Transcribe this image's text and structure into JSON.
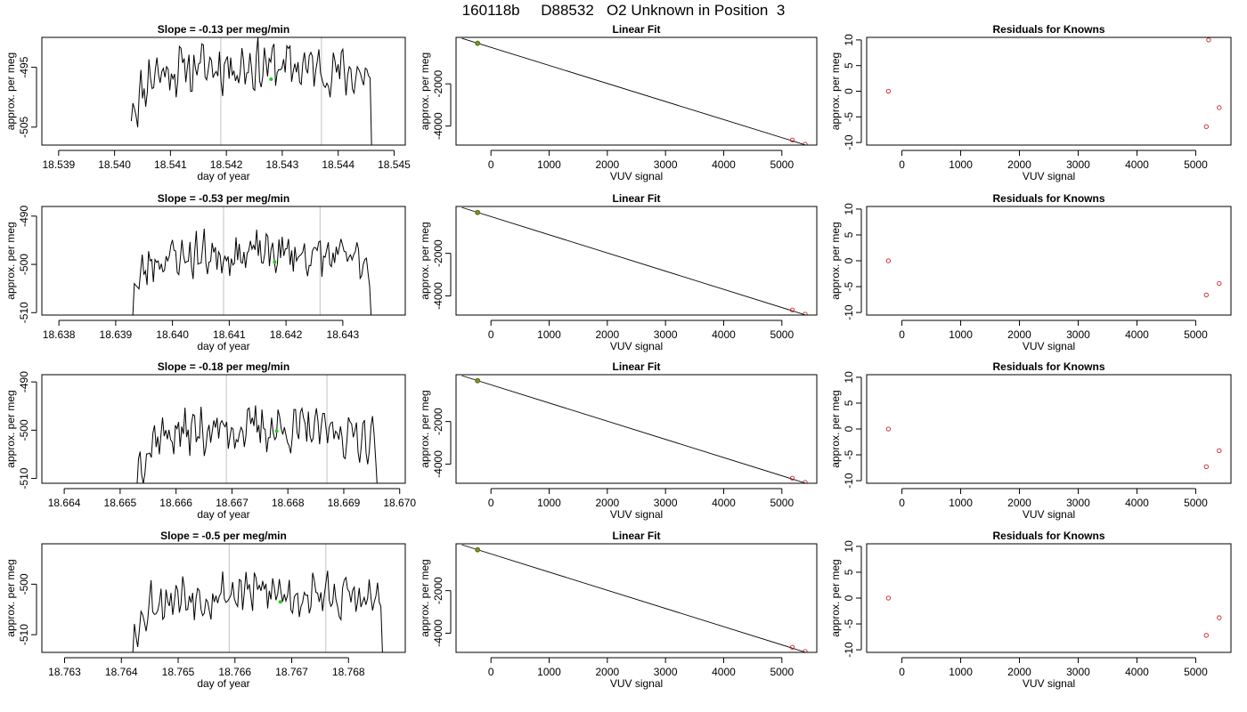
{
  "page": {
    "title": "160118b     D88532   O2 Unknown in Position  3"
  },
  "colors": {
    "trace": "#000000",
    "band": "#cccccc",
    "mean_point": "#22cc22",
    "known_point": "#cc2222"
  },
  "chart_data": [
    {
      "type": "line",
      "row": 0,
      "title": "Slope =  -0.13  per meg/min",
      "xlabel": "day of year",
      "ylabel": "approx. per meg",
      "xlim": [
        18.5387,
        18.5452
      ],
      "ylim": [
        -508,
        -490
      ],
      "xticks": [
        "18.539",
        "18.540",
        "18.541",
        "18.542",
        "18.543",
        "18.544",
        "18.545"
      ],
      "yticks": [
        "-505",
        "-495"
      ],
      "bands": [
        18.5419,
        18.5437
      ],
      "mean_point": {
        "x": 18.5428,
        "y": -497
      },
      "segment": {
        "x_start": 18.5403,
        "x_end": 18.5446,
        "seed": 11,
        "base": -496.5,
        "amp": 4,
        "start_y": -504,
        "end_y": -509
      }
    },
    {
      "type": "scatter",
      "row": 0,
      "title": "Linear Fit",
      "xlabel": "VUV signal",
      "ylabel": "approx. per meg",
      "xlim": [
        -600,
        5600
      ],
      "ylim": [
        -4900,
        200
      ],
      "xticks": [
        "0",
        "1000",
        "2000",
        "3000",
        "4000",
        "5000"
      ],
      "yticks": [
        "-2000",
        "-4000"
      ],
      "fit": {
        "x": [
          -500,
          5400
        ],
        "y": [
          153,
          -4890
        ]
      },
      "points": [
        {
          "x": -230,
          "y": -80,
          "color": "mean"
        },
        {
          "x": -230,
          "y": -80,
          "color": "known"
        },
        {
          "x": 5180,
          "y": -4660,
          "color": "known"
        },
        {
          "x": 5400,
          "y": -4860,
          "color": "known"
        }
      ]
    },
    {
      "type": "scatter",
      "row": 0,
      "title": "Residuals for Knowns",
      "xlabel": "VUV signal",
      "ylabel": "approx. per meg",
      "xlim": [
        -600,
        5600
      ],
      "ylim": [
        -10.5,
        10.5
      ],
      "xticks": [
        "0",
        "1000",
        "2000",
        "3000",
        "4000",
        "5000"
      ],
      "yticks": [
        "-10",
        "-5",
        "0",
        "5",
        "10"
      ],
      "points": [
        {
          "x": -230,
          "y": 0
        },
        {
          "x": 5220,
          "y": 10
        },
        {
          "x": 5180,
          "y": -6.9
        },
        {
          "x": 5400,
          "y": -3.2
        }
      ]
    },
    {
      "type": "line",
      "row": 1,
      "title": "Slope =  -0.53  per meg/min",
      "xlabel": "day of year",
      "ylabel": "approx. per meg",
      "xlim": [
        18.6377,
        18.6441
      ],
      "ylim": [
        -510.5,
        -488
      ],
      "xticks": [
        "18.638",
        "18.639",
        "18.640",
        "18.641",
        "18.642",
        "18.643"
      ],
      "yticks": [
        "-510",
        "-500",
        "-490"
      ],
      "bands": [
        18.6409,
        18.6426
      ],
      "mean_point": {
        "x": 18.6418,
        "y": -499.5
      },
      "segment": {
        "x_start": 18.6393,
        "x_end": 18.6435,
        "seed": 23,
        "base": -499.5,
        "amp": 4.5,
        "start_y": -511,
        "end_y": -511
      }
    },
    {
      "type": "scatter",
      "row": 1,
      "title": "Linear Fit",
      "xlabel": "VUV signal",
      "ylabel": "approx. per meg",
      "xlim": [
        -600,
        5600
      ],
      "ylim": [
        -4900,
        200
      ],
      "xticks": [
        "0",
        "1000",
        "2000",
        "3000",
        "4000",
        "5000"
      ],
      "yticks": [
        "-2000",
        "-4000"
      ],
      "fit": {
        "x": [
          -500,
          5400
        ],
        "y": [
          153,
          -4890
        ]
      },
      "points": [
        {
          "x": -230,
          "y": -80,
          "color": "mean"
        },
        {
          "x": -230,
          "y": -80,
          "color": "known"
        },
        {
          "x": 5180,
          "y": -4660,
          "color": "known"
        },
        {
          "x": 5400,
          "y": -4860,
          "color": "known"
        }
      ]
    },
    {
      "type": "scatter",
      "row": 1,
      "title": "Residuals for Knowns",
      "xlabel": "VUV signal",
      "ylabel": "approx. per meg",
      "xlim": [
        -600,
        5600
      ],
      "ylim": [
        -10.5,
        10.5
      ],
      "xticks": [
        "0",
        "1000",
        "2000",
        "3000",
        "4000",
        "5000"
      ],
      "yticks": [
        "-10",
        "-5",
        "0",
        "5",
        "10"
      ],
      "points": [
        {
          "x": -230,
          "y": 0
        },
        {
          "x": 5180,
          "y": -6.6
        },
        {
          "x": 5400,
          "y": -4.4
        }
      ]
    },
    {
      "type": "line",
      "row": 2,
      "title": "Slope =  -0.18  per meg/min",
      "xlabel": "day of year",
      "ylabel": "approx. per meg",
      "xlim": [
        18.6636,
        18.6701
      ],
      "ylim": [
        -511,
        -488.5
      ],
      "xticks": [
        "18.664",
        "18.665",
        "18.666",
        "18.667",
        "18.668",
        "18.669",
        "18.670"
      ],
      "yticks": [
        "-510",
        "-500",
        "-490"
      ],
      "bands": [
        18.6669,
        18.6687
      ],
      "mean_point": {
        "x": 18.6678,
        "y": -500.2
      },
      "segment": {
        "x_start": 18.6653,
        "x_end": 18.6696,
        "seed": 37,
        "base": -501.5,
        "amp": 4.5,
        "start_y": -512,
        "end_y": -512
      }
    },
    {
      "type": "scatter",
      "row": 2,
      "title": "Linear Fit",
      "xlabel": "VUV signal",
      "ylabel": "approx. per meg",
      "xlim": [
        -600,
        5600
      ],
      "ylim": [
        -4900,
        200
      ],
      "xticks": [
        "0",
        "1000",
        "2000",
        "3000",
        "4000",
        "5000"
      ],
      "yticks": [
        "-2000",
        "-4000"
      ],
      "fit": {
        "x": [
          -500,
          5400
        ],
        "y": [
          153,
          -4890
        ]
      },
      "points": [
        {
          "x": -230,
          "y": -80,
          "color": "mean"
        },
        {
          "x": -230,
          "y": -80,
          "color": "known"
        },
        {
          "x": 5180,
          "y": -4660,
          "color": "known"
        },
        {
          "x": 5400,
          "y": -4860,
          "color": "known"
        }
      ]
    },
    {
      "type": "scatter",
      "row": 2,
      "title": "Residuals for Knowns",
      "xlabel": "VUV signal",
      "ylabel": "approx. per meg",
      "xlim": [
        -600,
        5600
      ],
      "ylim": [
        -10.5,
        10.5
      ],
      "xticks": [
        "0",
        "1000",
        "2000",
        "3000",
        "4000",
        "5000"
      ],
      "yticks": [
        "-10",
        "-5",
        "0",
        "5",
        "10"
      ],
      "points": [
        {
          "x": -230,
          "y": 0
        },
        {
          "x": 5180,
          "y": -7.3
        },
        {
          "x": 5400,
          "y": -4.2
        }
      ]
    },
    {
      "type": "line",
      "row": 3,
      "title": "Slope =  -0.5  per meg/min",
      "xlabel": "day of year",
      "ylabel": "approx. per meg",
      "xlim": [
        18.7626,
        18.769
      ],
      "ylim": [
        -513.5,
        -492
      ],
      "xticks": [
        "18.763",
        "18.764",
        "18.765",
        "18.766",
        "18.767",
        "18.768"
      ],
      "yticks": [
        "-510",
        "-500"
      ],
      "bands": [
        18.7659,
        18.7676
      ],
      "mean_point": {
        "x": 18.7668,
        "y": -503.5
      },
      "segment": {
        "x_start": 18.7642,
        "x_end": 18.7686,
        "seed": 53,
        "base": -503.5,
        "amp": 4.5,
        "start_y": -514,
        "end_y": -514
      }
    },
    {
      "type": "scatter",
      "row": 3,
      "title": "Linear Fit",
      "xlabel": "VUV signal",
      "ylabel": "approx. per meg",
      "xlim": [
        -600,
        5600
      ],
      "ylim": [
        -4900,
        200
      ],
      "xticks": [
        "0",
        "1000",
        "2000",
        "3000",
        "4000",
        "5000"
      ],
      "yticks": [
        "-2000",
        "-4000"
      ],
      "fit": {
        "x": [
          -500,
          5400
        ],
        "y": [
          153,
          -4890
        ]
      },
      "points": [
        {
          "x": -230,
          "y": -80,
          "color": "mean"
        },
        {
          "x": -230,
          "y": -80,
          "color": "known"
        },
        {
          "x": 5180,
          "y": -4660,
          "color": "known"
        },
        {
          "x": 5400,
          "y": -4860,
          "color": "known"
        }
      ]
    },
    {
      "type": "scatter",
      "row": 3,
      "title": "Residuals for Knowns",
      "xlabel": "VUV signal",
      "ylabel": "approx. per meg",
      "xlim": [
        -600,
        5600
      ],
      "ylim": [
        -10.5,
        10.5
      ],
      "xticks": [
        "0",
        "1000",
        "2000",
        "3000",
        "4000",
        "5000"
      ],
      "yticks": [
        "-10",
        "-5",
        "0",
        "5",
        "10"
      ],
      "points": [
        {
          "x": -230,
          "y": 0
        },
        {
          "x": 5180,
          "y": -7.2
        },
        {
          "x": 5400,
          "y": -3.8
        }
      ]
    }
  ]
}
